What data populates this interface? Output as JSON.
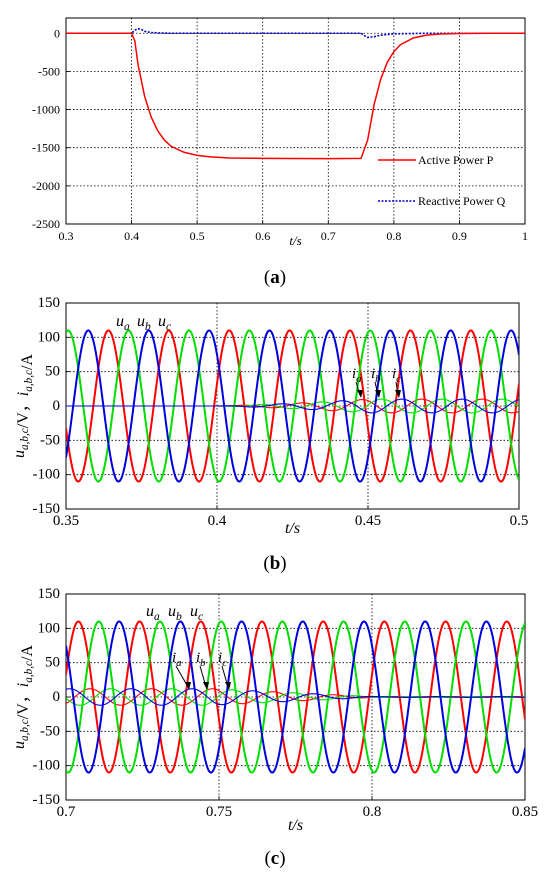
{
  "chart_data": [
    {
      "type": "line",
      "panel_label": "(a)",
      "panel_letter": "a",
      "xlabel": "t/s",
      "ylabel": "",
      "xlim": [
        0.3,
        1.0
      ],
      "ylim": [
        -2500,
        200
      ],
      "xticks": [
        0.3,
        0.4,
        0.5,
        0.6,
        0.7,
        0.8,
        0.9,
        1
      ],
      "xtick_labels": [
        "0.3",
        "0.4",
        "0.5",
        "0.6",
        "0.7",
        "0.8",
        "0.9",
        "1"
      ],
      "yticks": [
        0,
        -500,
        -1000,
        -1500,
        -2000,
        -2500
      ],
      "ytick_labels": [
        "0",
        "-500",
        "-1000",
        "-1500",
        "-2000",
        "-2500"
      ],
      "grid": "dotted",
      "legend": "bottom-right",
      "series": [
        {
          "name": "Active Power P",
          "color": "#ff0000",
          "style": "solid",
          "x": [
            0.3,
            0.4,
            0.405,
            0.41,
            0.42,
            0.43,
            0.44,
            0.45,
            0.46,
            0.48,
            0.5,
            0.52,
            0.55,
            0.6,
            0.65,
            0.7,
            0.75,
            0.76,
            0.77,
            0.78,
            0.79,
            0.8,
            0.81,
            0.83,
            0.85,
            0.87,
            0.9,
            0.95,
            1.0
          ],
          "y": [
            0,
            0,
            -100,
            -420,
            -830,
            -1100,
            -1280,
            -1400,
            -1480,
            -1560,
            -1600,
            -1620,
            -1635,
            -1640,
            -1642,
            -1643,
            -1640,
            -1400,
            -930,
            -600,
            -380,
            -240,
            -150,
            -60,
            -25,
            -10,
            -3,
            0,
            0
          ]
        },
        {
          "name": "Reactive Power Q",
          "color": "#0000cc",
          "style": "dotted",
          "x": [
            0.3,
            0.4,
            0.405,
            0.41,
            0.415,
            0.42,
            0.43,
            0.44,
            0.46,
            0.5,
            0.6,
            0.7,
            0.75,
            0.755,
            0.76,
            0.77,
            0.78,
            0.8,
            0.85,
            0.9,
            1.0
          ],
          "y": [
            0,
            0,
            40,
            60,
            50,
            25,
            10,
            5,
            0,
            0,
            0,
            0,
            0,
            -30,
            -55,
            -45,
            -25,
            -8,
            0,
            0,
            0
          ]
        }
      ]
    },
    {
      "type": "line",
      "panel_label": "(b)",
      "panel_letter": "b",
      "xlabel": "t/s",
      "ylabel_parts": [
        "u",
        "a,b,c",
        "/V，",
        "i",
        "a,b,c",
        "/A"
      ],
      "xlim": [
        0.35,
        0.5
      ],
      "ylim": [
        -150,
        150
      ],
      "xticks": [
        0.35,
        0.4,
        0.45,
        0.5
      ],
      "xtick_labels": [
        "0.35",
        "0.4",
        "0.45",
        "0.5"
      ],
      "yticks": [
        150,
        100,
        50,
        0,
        -50,
        -100,
        -150
      ],
      "ytick_labels": [
        "150",
        "100",
        "50",
        "0",
        "-50",
        "-100",
        "-150"
      ],
      "grid": "dotted",
      "voltage_amplitude": 110,
      "frequency_hz": 50,
      "current_amplitude": 10,
      "current_start": 0.4,
      "current_rise": 0.45,
      "series": [
        {
          "name": "u_a",
          "color": "#ff0000",
          "phase_deg": 0
        },
        {
          "name": "u_b",
          "color": "#00dd00",
          "phase_deg": -120
        },
        {
          "name": "u_c",
          "color": "#0000dd",
          "phase_deg": 120
        }
      ],
      "annotations": {
        "u": [
          {
            "base": "u",
            "sub": "a"
          },
          {
            "base": "u",
            "sub": "b"
          },
          {
            "base": "u",
            "sub": "c"
          }
        ],
        "i": [
          {
            "base": "i",
            "sub": "a"
          },
          {
            "base": "i",
            "sub": "b"
          },
          {
            "base": "i",
            "sub": "c"
          }
        ]
      }
    },
    {
      "type": "line",
      "panel_label": "(c)",
      "panel_letter": "c",
      "xlabel": "t/s",
      "ylabel_parts": [
        "u",
        "a,b,c",
        "/V，",
        "i",
        "a,b,c",
        "/A"
      ],
      "xlim": [
        0.7,
        0.85
      ],
      "ylim": [
        -150,
        150
      ],
      "xticks": [
        0.7,
        0.75,
        0.8,
        0.85
      ],
      "xtick_labels": [
        "0.7",
        "0.75",
        "0.8",
        "0.85"
      ],
      "yticks": [
        150,
        100,
        50,
        0,
        -50,
        -100,
        -150
      ],
      "ytick_labels": [
        "150",
        "100",
        "50",
        "0",
        "-50",
        "-100",
        "-150"
      ],
      "grid": "dotted",
      "voltage_amplitude": 110,
      "frequency_hz": 50,
      "current_amplitude": 12,
      "current_decay_start": 0.75,
      "current_decay_end": 0.8,
      "series": [
        {
          "name": "u_a",
          "color": "#ff0000",
          "phase_deg": 0
        },
        {
          "name": "u_b",
          "color": "#00dd00",
          "phase_deg": -120
        },
        {
          "name": "u_c",
          "color": "#0000dd",
          "phase_deg": 120
        }
      ],
      "annotations": {
        "u": [
          {
            "base": "u",
            "sub": "a"
          },
          {
            "base": "u",
            "sub": "b"
          },
          {
            "base": "u",
            "sub": "c"
          }
        ],
        "i": [
          {
            "base": "i",
            "sub": "a"
          },
          {
            "base": "i",
            "sub": "b"
          },
          {
            "base": "i",
            "sub": "c"
          }
        ]
      }
    }
  ]
}
